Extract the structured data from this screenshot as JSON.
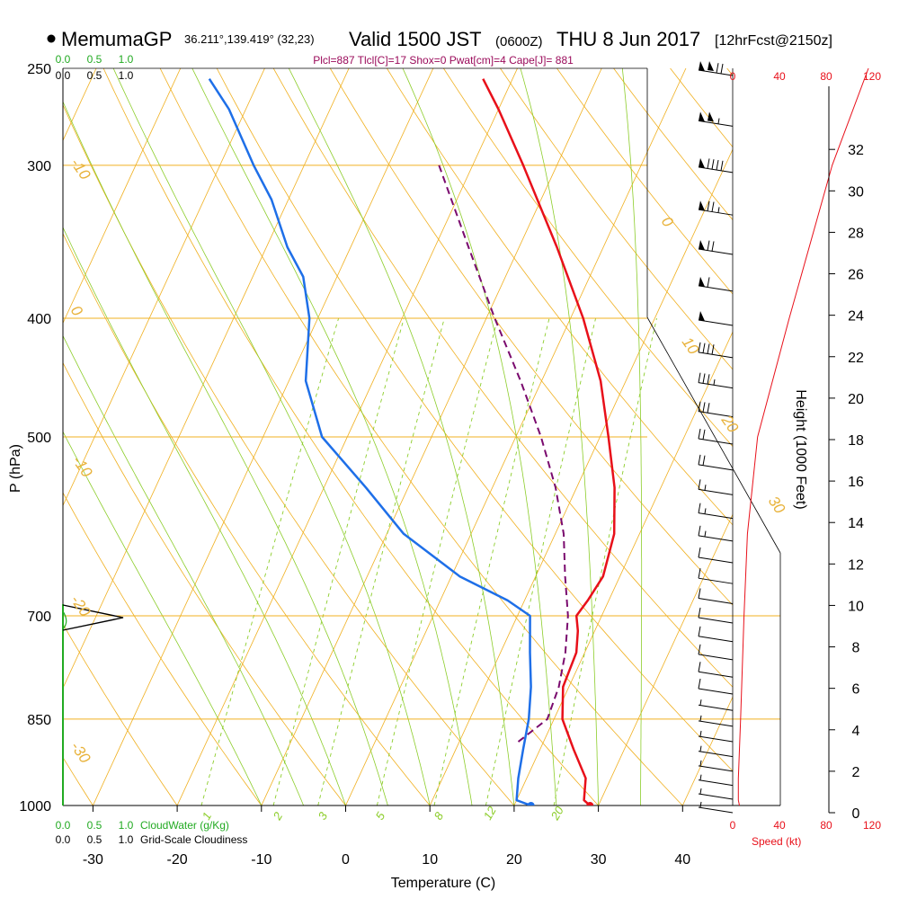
{
  "header": {
    "station": "MemumaGP",
    "coords": "36.211°,139.419° (32,23)",
    "valid_main": "Valid 1500 JST",
    "valid_z": "(0600Z)",
    "valid_date": "THU 8 Jun 2017",
    "fcst": "[12hrFcst@2150z]",
    "indices": "Plcl=887 Tlcl[C]=17 Shox=0 Pwat[cm]=4 Cape[J]= 881"
  },
  "colors": {
    "temperature": "#e8101a",
    "dewpoint": "#1e6fe8",
    "parcel": "#7a0a6e",
    "isotherm": "#f0b020",
    "dry_adiabat": "#f0b020",
    "moist_adiabat": "#8ccd2a",
    "mixing_ratio": "#8ccd2a",
    "cloudwater": "#22aa22",
    "speed": "#e8101a"
  },
  "chart_data": {
    "type": "line",
    "title": "",
    "xlabel": "Temperature (C)",
    "ylabel": "P (hPa)",
    "y2label": "Height (1000 Feet)",
    "xlim": [
      -35,
      45
    ],
    "ylim_pressure": [
      1000,
      250
    ],
    "x_ticks": [
      -30,
      -20,
      -10,
      0,
      10,
      20,
      30,
      40
    ],
    "pressure_ticks": [
      250,
      300,
      400,
      500,
      700,
      850,
      1000
    ],
    "height_ticks": [
      0,
      2,
      4,
      6,
      8,
      10,
      12,
      14,
      16,
      18,
      20,
      22,
      24,
      26,
      28,
      30,
      32
    ],
    "dry_adiabat_labels": [
      "-10",
      "0",
      "-10",
      "-20",
      "-30",
      "0",
      "10",
      "20",
      "30"
    ],
    "mixing_ratio_labels": [
      "1",
      "2",
      "3",
      "5",
      "8",
      "12",
      "20"
    ],
    "series": [
      {
        "key": "temperature",
        "points": [
          {
            "p": 1000,
            "t": 29
          },
          {
            "p": 990,
            "t": 28
          },
          {
            "p": 950,
            "t": 27
          },
          {
            "p": 900,
            "t": 24
          },
          {
            "p": 850,
            "t": 21
          },
          {
            "p": 800,
            "t": 19.3
          },
          {
            "p": 750,
            "t": 19
          },
          {
            "p": 720,
            "t": 18
          },
          {
            "p": 700,
            "t": 17
          },
          {
            "p": 680,
            "t": 17.5
          },
          {
            "p": 650,
            "t": 18
          },
          {
            "p": 600,
            "t": 17
          },
          {
            "p": 550,
            "t": 14.5
          },
          {
            "p": 500,
            "t": 11
          },
          {
            "p": 450,
            "t": 7
          },
          {
            "p": 400,
            "t": 1.5
          },
          {
            "p": 350,
            "t": -5.5
          },
          {
            "p": 300,
            "t": -14
          },
          {
            "p": 270,
            "t": -20
          },
          {
            "p": 255,
            "t": -23.5
          }
        ]
      },
      {
        "key": "dewpoint",
        "points": [
          {
            "p": 1000,
            "t": 22
          },
          {
            "p": 990,
            "t": 20
          },
          {
            "p": 950,
            "t": 19
          },
          {
            "p": 900,
            "t": 18
          },
          {
            "p": 850,
            "t": 17
          },
          {
            "p": 800,
            "t": 15.5
          },
          {
            "p": 750,
            "t": 13.5
          },
          {
            "p": 700,
            "t": 11.5
          },
          {
            "p": 680,
            "t": 8
          },
          {
            "p": 650,
            "t": 1
          },
          {
            "p": 600,
            "t": -8
          },
          {
            "p": 550,
            "t": -15
          },
          {
            "p": 500,
            "t": -23
          },
          {
            "p": 450,
            "t": -28
          },
          {
            "p": 400,
            "t": -31
          },
          {
            "p": 370,
            "t": -34
          },
          {
            "p": 350,
            "t": -37.5
          },
          {
            "p": 320,
            "t": -42
          },
          {
            "p": 300,
            "t": -46
          },
          {
            "p": 270,
            "t": -52
          },
          {
            "p": 255,
            "t": -56
          }
        ]
      },
      {
        "key": "parcel",
        "points": [
          {
            "p": 887,
            "t": 17
          },
          {
            "p": 850,
            "t": 19.2
          },
          {
            "p": 800,
            "t": 18.8
          },
          {
            "p": 750,
            "t": 17.7
          },
          {
            "p": 700,
            "t": 16
          },
          {
            "p": 650,
            "t": 13.5
          },
          {
            "p": 600,
            "t": 11
          },
          {
            "p": 550,
            "t": 7.5
          },
          {
            "p": 500,
            "t": 3
          },
          {
            "p": 450,
            "t": -2.5
          },
          {
            "p": 400,
            "t": -9
          },
          {
            "p": 350,
            "t": -16
          },
          {
            "p": 300,
            "t": -24
          }
        ]
      },
      {
        "key": "speed",
        "points": [
          {
            "p": 1000,
            "kt": 6
          },
          {
            "p": 990,
            "kt": 5
          },
          {
            "p": 950,
            "kt": 5
          },
          {
            "p": 850,
            "kt": 7
          },
          {
            "p": 700,
            "kt": 10
          },
          {
            "p": 600,
            "kt": 13
          },
          {
            "p": 500,
            "kt": 22
          },
          {
            "p": 400,
            "kt": 50
          },
          {
            "p": 300,
            "kt": 88
          },
          {
            "p": 250,
            "kt": 120
          }
        ]
      }
    ],
    "surface_markers": {
      "temperature": 29,
      "dewpoint": 22
    },
    "wind_levels": [
      250,
      275,
      300,
      325,
      350,
      375,
      400,
      425,
      450,
      475,
      500,
      525,
      550,
      575,
      600,
      625,
      650,
      675,
      700,
      725,
      750,
      775,
      800,
      825,
      850,
      875,
      900,
      925,
      950,
      975,
      1000
    ],
    "speed_axis": {
      "label": "Speed (kt)",
      "ticks": [
        "0",
        "40",
        "80",
        "120"
      ]
    },
    "cloud_axis": {
      "water_label": "CloudWater (g/Kg)",
      "cloudiness_label": "Grid-Scale Cloudiness",
      "water_ticks": [
        "0.0",
        "0.5",
        "1.0"
      ],
      "cloudiness_ticks": [
        "0.0",
        "0.5",
        "1.0"
      ]
    }
  }
}
